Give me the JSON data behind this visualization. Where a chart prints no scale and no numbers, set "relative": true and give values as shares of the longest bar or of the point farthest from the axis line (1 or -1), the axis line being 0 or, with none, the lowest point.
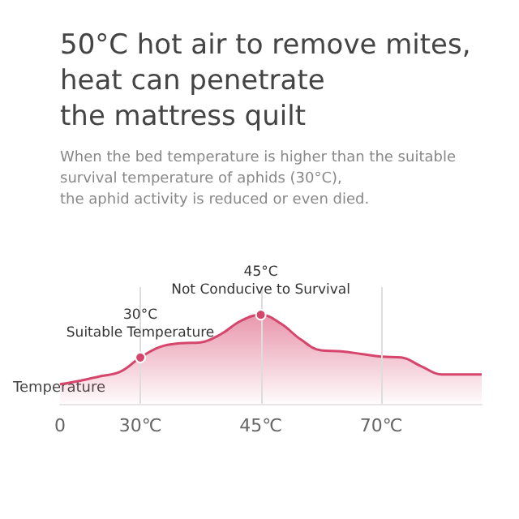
{
  "chart_data": {
    "type": "area",
    "title": "50°C hot air to remove mites,\nheat can penetrate\nthe mattress quilt",
    "subtitle": "When the bed temperature is higher than the suitable\nsurvival temperature of aphids (30°C),\nthe aphid activity is reduced or even died.",
    "categories": [
      "0",
      null,
      null,
      null,
      "30℃",
      null,
      null,
      null,
      null,
      null,
      "45℃",
      null,
      null,
      null,
      null,
      null,
      "70℃",
      null,
      null,
      null,
      null,
      null
    ],
    "relative": true,
    "color": "#d6456b",
    "values": [
      0.22,
      0.26,
      0.31,
      0.36,
      0.52,
      0.64,
      0.68,
      0.69,
      0.78,
      0.93,
      1,
      0.9,
      0.72,
      0.6,
      0.59,
      0.56,
      0.53,
      0.52,
      0.42,
      0.33,
      0.33,
      0.33
    ],
    "ref_lines": [
      {
        "axis": "x",
        "value": "30℃",
        "color": "#dddddd"
      },
      {
        "axis": "x",
        "value": "45℃",
        "color": "#dddddd"
      },
      {
        "axis": "x",
        "value": "70℃",
        "color": "#dddddd"
      }
    ],
    "annotations": [
      "Temperature",
      {
        "text": "30°C\nSuitable Temperature",
        "x": "30℃",
        "y": 0.52
      },
      {
        "text": "45°C\nNot Conducive to Survival",
        "x": "45℃",
        "y": 1
      }
    ]
  }
}
